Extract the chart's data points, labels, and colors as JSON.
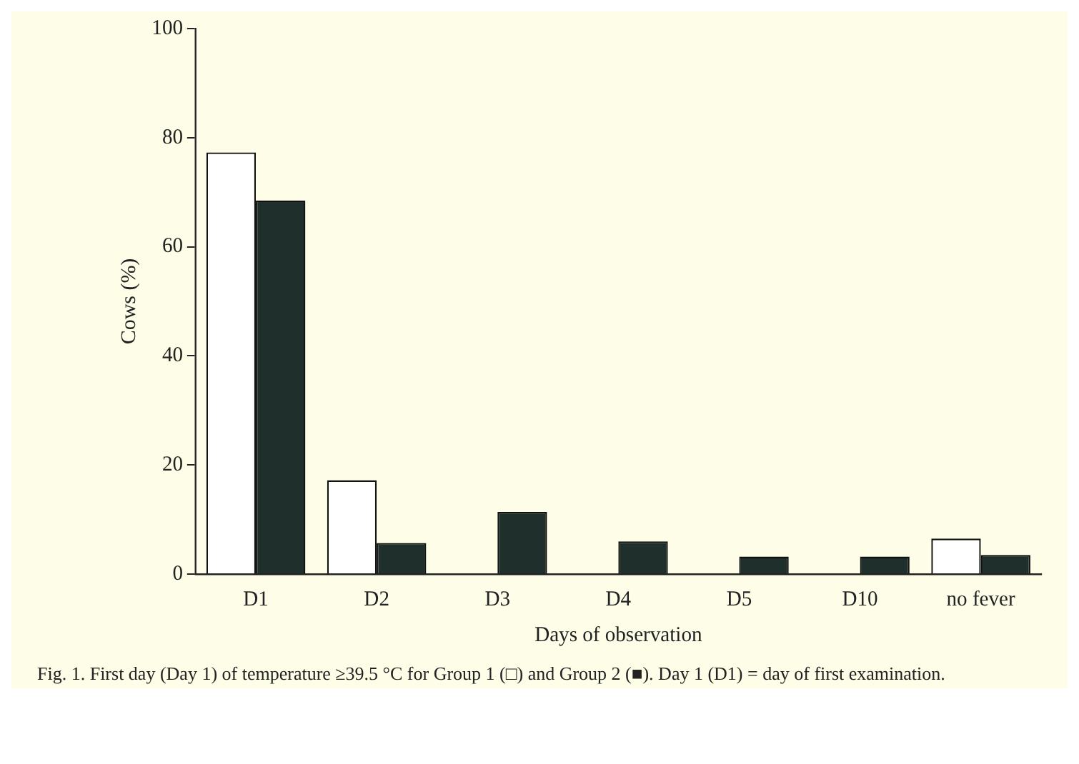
{
  "chart_data": {
    "type": "bar",
    "xlabel": "Days of observation",
    "ylabel": "Cows (%)",
    "categories": [
      "D1",
      "D2",
      "D3",
      "D4",
      "D5",
      "D10",
      "no fever"
    ],
    "series": [
      {
        "color": "#ffffff",
        "values": [
          77.3,
          17.2,
          0,
          0,
          0,
          0,
          6.5
        ]
      },
      {
        "color": "#1f2f2b",
        "values": [
          68.5,
          5.7,
          11.4,
          6,
          3.2,
          3.2,
          3.5
        ]
      }
    ],
    "ylim": [
      0,
      100
    ],
    "yticks": [
      0,
      20,
      40,
      60,
      80,
      100
    ],
    "grid": false,
    "legend": false,
    "annotations": [
      "Fig. 1. First day (Day 1) of temperature ≥39.5 °C for Group 1 (□) and Group 2 (■). Day 1 (D1) = day of first examination."
    ]
  }
}
